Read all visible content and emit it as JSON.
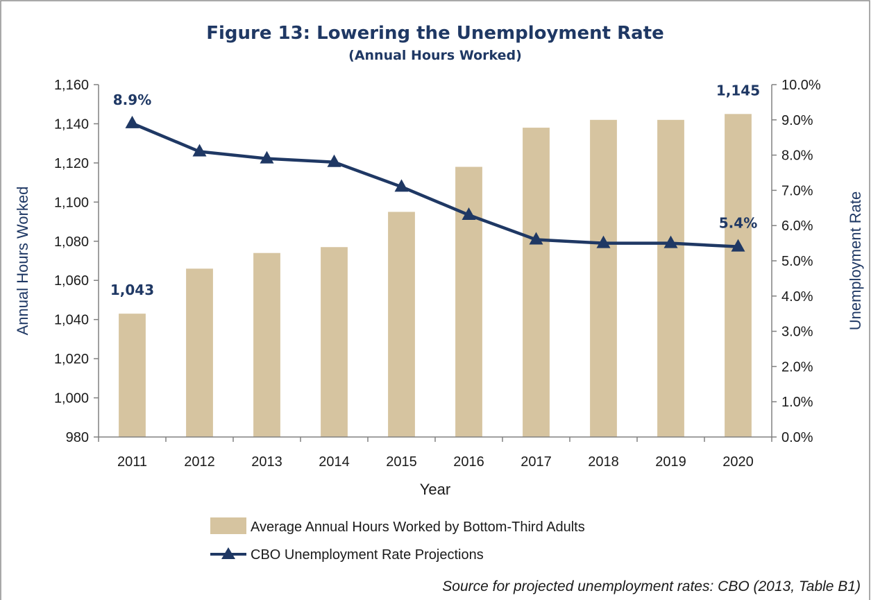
{
  "chart_data": {
    "type": "bar",
    "title": "Figure 13: Lowering the Unemployment Rate",
    "subtitle": "(Annual Hours Worked)",
    "xlabel": "Year",
    "ylabel": "Annual Hours Worked",
    "y2label": "Unemployment Rate",
    "categories": [
      "2011",
      "2012",
      "2013",
      "2014",
      "2015",
      "2016",
      "2017",
      "2018",
      "2019",
      "2020"
    ],
    "ylim": [
      980,
      1160
    ],
    "yticks": [
      "980",
      "1,000",
      "1,020",
      "1,040",
      "1,060",
      "1,080",
      "1,100",
      "1,120",
      "1,140",
      "1,160"
    ],
    "y2lim": [
      0,
      10
    ],
    "y2ticks": [
      "0.0%",
      "1.0%",
      "2.0%",
      "3.0%",
      "4.0%",
      "5.0%",
      "6.0%",
      "7.0%",
      "8.0%",
      "9.0%",
      "10.0%"
    ],
    "series": [
      {
        "name": "Average Annual Hours Worked by Bottom-Third Adults",
        "type": "bar",
        "axis": "left",
        "color": "#d6c4a0",
        "values": [
          1043,
          1066,
          1074,
          1077,
          1095,
          1118,
          1138,
          1142,
          1142,
          1145
        ]
      },
      {
        "name": "CBO Unemployment Rate Projections",
        "type": "line",
        "axis": "right",
        "marker": "triangle",
        "color": "#1f3864",
        "values": [
          8.9,
          8.1,
          7.9,
          7.8,
          7.1,
          6.3,
          5.6,
          5.5,
          5.5,
          5.4
        ]
      }
    ],
    "data_labels": [
      {
        "series": 0,
        "index": 0,
        "text": "1,043"
      },
      {
        "series": 0,
        "index": 9,
        "text": "1,145"
      },
      {
        "series": 1,
        "index": 0,
        "text": "8.9%"
      },
      {
        "series": 1,
        "index": 9,
        "text": "5.4%"
      }
    ],
    "grid": false,
    "legend_position": "bottom",
    "source": "Source for projected unemployment rates: CBO (2013, Table B1)"
  }
}
